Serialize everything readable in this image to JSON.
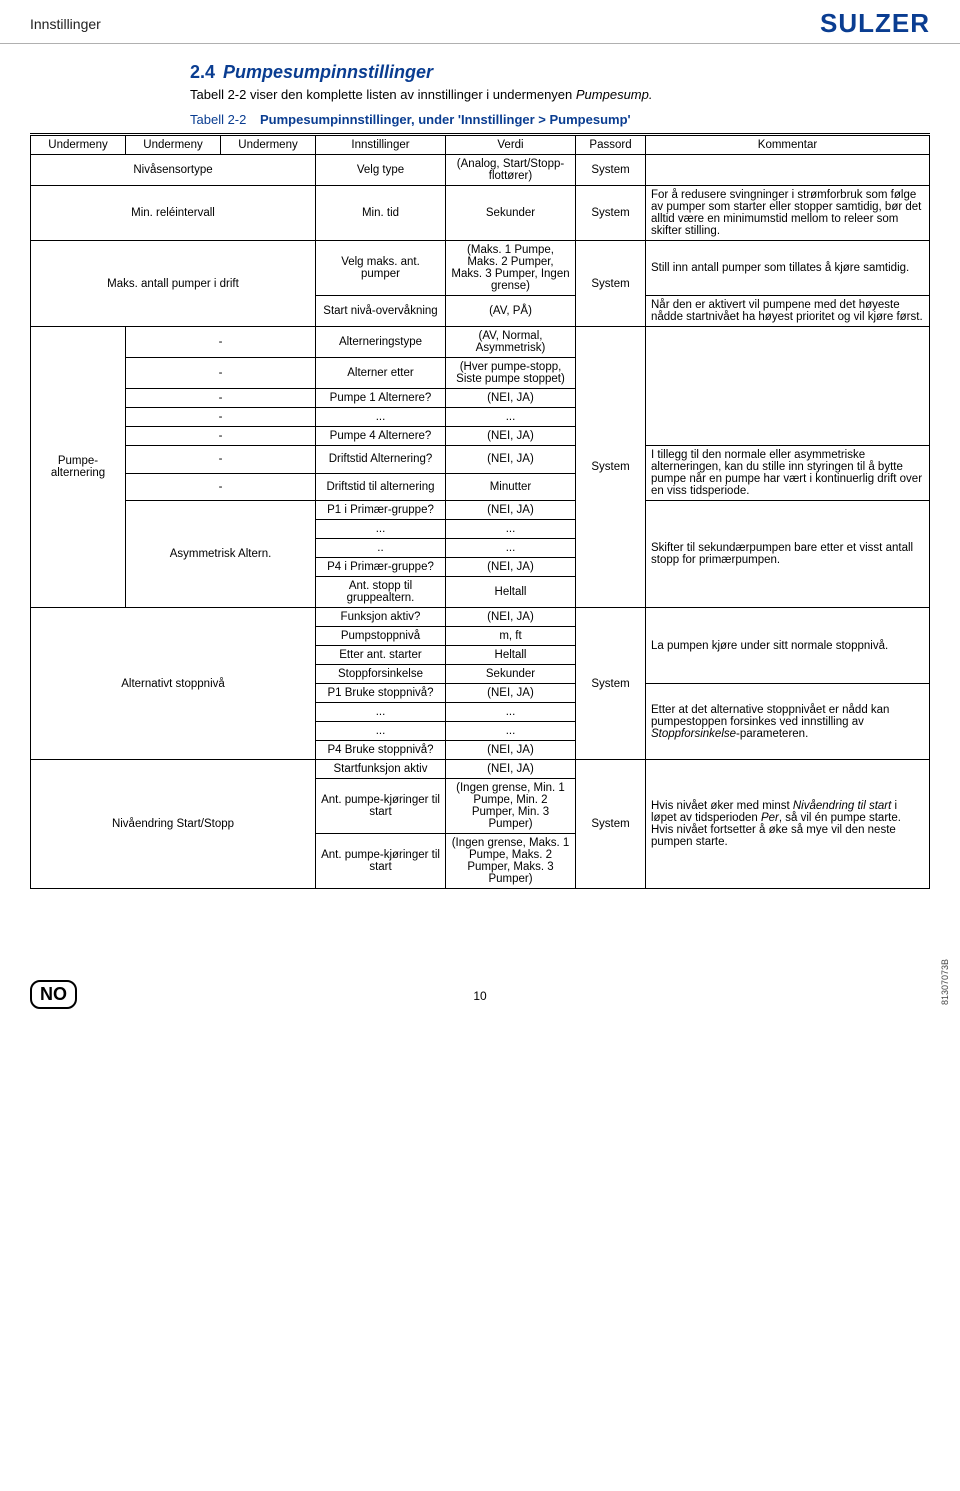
{
  "header": {
    "crumb": "Innstillinger",
    "logo": "SULZER"
  },
  "section": {
    "number": "2.4",
    "title": "Pumpesumpinnstillinger",
    "intro_a": "Tabell 2-2 viser den komplette listen av innstillinger i undermenyen ",
    "intro_b": "Pumpesump.",
    "tablabel": "Tabell 2-2",
    "tabdesc": "Pumpesumpinnstillinger, under 'Innstillinger > Pumpesump'"
  },
  "th": {
    "c1": "Undermeny",
    "c2": "Undermeny",
    "c3": "Undermeny",
    "c4": "Innstillinger",
    "c5": "Verdi",
    "c6": "Passord",
    "c7": "Kommentar"
  },
  "rows": {
    "r1": {
      "a": "Nivåsensortype",
      "d": "Velg type",
      "e": "(Analog, Start/Stopp-flottører)",
      "f": "System"
    },
    "r2": {
      "a": "Min. reléintervall",
      "d": "Min. tid",
      "e": "Sekunder",
      "f": "System",
      "g": "For å redusere svingninger i strømforbruk som følge av pumper som starter eller stopper samtidig, bør det alltid være en minimumstid mellom to releer som skifter stilling."
    },
    "r3": {
      "a": "Maks. antall pumper i drift",
      "d1": "Velg maks. ant. pumper",
      "e1": "(Maks. 1 Pumpe, Maks. 2 Pumper, Maks. 3 Pumper, Ingen grense)",
      "d2": "Start nivå-overvåkning",
      "e2": "(AV, PÅ)",
      "f": "System",
      "g1": "Still inn antall pumper som tillates å kjøre samtidig.",
      "g2": "Når den er aktivert vil pumpene med det høyeste nådde startnivået ha høyest prioritet og vil kjøre først."
    },
    "alt": {
      "a": "Pumpe-alternering",
      "r1": {
        "b": "-",
        "d": "Alterneringstype",
        "e": "(AV, Normal, Asymmetrisk)"
      },
      "r2": {
        "b": "-",
        "d": "Alterner etter",
        "e": "(Hver pumpe-stopp, Siste pumpe stoppet)"
      },
      "r3": {
        "b": "-",
        "d": "Pumpe 1 Alternere?",
        "e": "(NEI, JA)"
      },
      "r4": {
        "b": "-",
        "d": "...",
        "e": "..."
      },
      "r5": {
        "b": "-",
        "d": "Pumpe 4 Alternere?",
        "e": "(NEI, JA)"
      },
      "r6": {
        "b": "-",
        "d": "Driftstid Alternering?",
        "e": "(NEI, JA)"
      },
      "r7": {
        "b": "-",
        "d": "Driftstid til alternering",
        "e": "Minutter"
      },
      "asym": {
        "b": "Asymmetrisk Altern.",
        "r1": {
          "d": "P1 i Primær-gruppe?",
          "e": "(NEI, JA)"
        },
        "r2a": {
          "d": "...",
          "e": "..."
        },
        "r2b": {
          "d": "..",
          "e": "..."
        },
        "r3": {
          "d": "P4 i Primær-gruppe?",
          "e": "(NEI, JA)"
        },
        "r4": {
          "d": "Ant. stopp til gruppealtern.",
          "e": "Heltall"
        }
      },
      "f": "System",
      "g1": "I tillegg til den normale eller asymmetriske alterneringen, kan du stille inn styringen til å bytte pumpe når en pumpe har vært i kontinuerlig drift over en viss tidsperiode.",
      "g2": "Skifter til sekundærpumpen bare etter et visst antall stopp for primærpumpen."
    },
    "stop": {
      "a": "Alternativt stoppnivå",
      "r1": {
        "d": "Funksjon aktiv?",
        "e": "(NEI, JA)"
      },
      "r2": {
        "d": "Pumpstoppnivå",
        "e": "m, ft"
      },
      "r3": {
        "d": "Etter ant. starter",
        "e": "Heltall"
      },
      "r4": {
        "d": "Stoppforsinkelse",
        "e": "Sekunder"
      },
      "r5": {
        "d": "P1 Bruke stoppnivå?",
        "e": "(NEI, JA)"
      },
      "r6a": {
        "d": "...",
        "e": "..."
      },
      "r6b": {
        "d": "...",
        "e": "..."
      },
      "r7": {
        "d": "P4 Bruke stoppnivå?",
        "e": "(NEI, JA)"
      },
      "f": "System",
      "g1": "La pumpen kjøre under sitt normale stoppnivå.",
      "g2_a": "Etter at det alternative stoppnivået er nådd kan pumpestoppen forsinkes ved innstilling av ",
      "g2_b": "Stoppforsinkelse",
      "g2_c": "-parameteren."
    },
    "niv": {
      "a": "Nivåendring Start/Stopp",
      "r1": {
        "d": "Startfunksjon aktiv",
        "e": "(NEI, JA)"
      },
      "r2": {
        "d": "Ant. pumpe-kjøringer til start",
        "e": "(Ingen grense, Min. 1 Pumpe, Min. 2 Pumper, Min. 3 Pumper)"
      },
      "r3": {
        "d": "Ant. pumpe-kjøringer til start",
        "e": "(Ingen grense, Maks. 1 Pumpe, Maks. 2 Pumper, Maks. 3 Pumper)"
      },
      "f": "System",
      "g_a": "Hvis nivået øker med minst ",
      "g_b": "Nivåendring til start",
      "g_c": " i løpet av tidsperioden ",
      "g_d": "Per",
      "g_e": ", så vil én pumpe starte. Hvis nivået fortsetter å øke så mye vil den neste pumpen starte."
    }
  },
  "footer": {
    "badge": "NO",
    "pagenum": "10",
    "docid": "81307073B"
  }
}
